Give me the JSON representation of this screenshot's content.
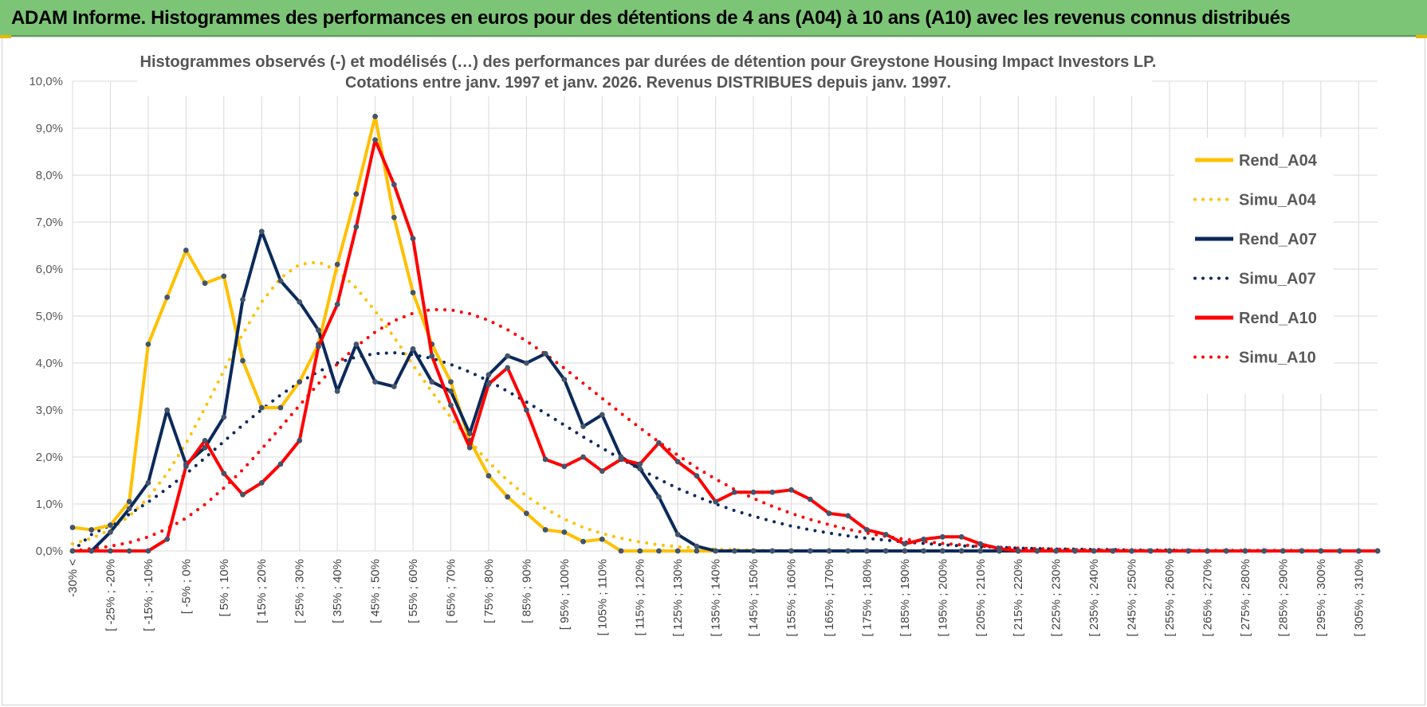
{
  "banner": {
    "title": "ADAM Informe. Histogrammes des performances en euros pour des détentions de 4 ans (A04) à 10 ans (A10) avec les revenus connus distribués"
  },
  "chart_data": {
    "type": "line",
    "title_line1": "Histogrammes observés (-) et modélisés (…) des performances par durées de détention pour Greystone Housing Impact Investors LP.",
    "title_line2": "Cotations entre janv. 1997 et janv. 2026. Revenus DISTRIBUES depuis janv. 1997.",
    "xlabel": "",
    "ylabel": "",
    "ylim": [
      0,
      10
    ],
    "yticks": [
      "0,0%",
      "1,0%",
      "2,0%",
      "3,0%",
      "4,0%",
      "5,0%",
      "6,0%",
      "7,0%",
      "8,0%",
      "9,0%",
      "10,0%"
    ],
    "grid": true,
    "legend_position": "right",
    "category_labels": [
      "-30% <",
      "[ -25% ; -20%",
      "[ -15% ; -10%",
      "[ -5% ; 0%",
      "[ 5% ; 10%",
      "[ 15% ; 20%",
      "[ 25% ; 30%",
      "[ 35% ; 40%",
      "[ 45% ; 50%",
      "[ 55% ; 60%",
      "[ 65% ; 70%",
      "[ 75% ; 80%",
      "[ 85% ; 90%",
      "[ 95% ; 100%",
      "[ 105% ; 110%",
      "[ 115% ; 120%",
      "[ 125% ; 130%",
      "[ 135% ; 140%",
      "[ 145% ; 150%",
      "[ 155% ; 160%",
      "[ 165% ; 170%",
      "[ 175% ; 180%",
      "[ 185% ; 190%",
      "[ 195% ; 200%",
      "[ 205% ; 210%",
      "[ 215% ; 220%",
      "[ 225% ; 230%",
      "[ 235% ; 240%",
      "[ 245% ; 250%",
      "[ 255% ; 260%",
      "[ 265% ; 270%",
      "[ 275% ; 280%",
      "[ 285% ; 290%",
      "[ 295% ; 300%",
      "[ 305% ; 310%"
    ],
    "series": [
      {
        "name": "Rend_A04",
        "color": "#ffc000",
        "style": "solid",
        "values": [
          0.5,
          0.45,
          0.55,
          1.05,
          4.4,
          5.4,
          6.4,
          5.7,
          5.85,
          4.05,
          3.05,
          3.05,
          3.6,
          4.4,
          6.1,
          7.6,
          9.25,
          7.1,
          5.5,
          4.4,
          3.6,
          2.35,
          1.6,
          1.15,
          0.8,
          0.45,
          0.4,
          0.2,
          0.25,
          0.0,
          0.0,
          0.0,
          0.0,
          0.0,
          0.0,
          0.0,
          0.0,
          0.0,
          0.0,
          0.0,
          0.0,
          0.0,
          0.0,
          0.0,
          0.0,
          0.0,
          0.0,
          0.0,
          0.0,
          0.0,
          0.0,
          0.0,
          0.0,
          0.0,
          0.0,
          0.0,
          0.0,
          0.0,
          0.0,
          0.0,
          0.0,
          0.0,
          0.0,
          0.0,
          0.0,
          0.0,
          0.0,
          0.0,
          0.0,
          0.0
        ]
      },
      {
        "name": "Simu_A04",
        "color": "#ffc000",
        "style": "dotted",
        "values": [
          0.15,
          0.27,
          0.45,
          0.74,
          1.13,
          1.65,
          2.29,
          3.04,
          3.84,
          4.62,
          5.3,
          5.81,
          6.1,
          6.15,
          5.97,
          5.6,
          5.11,
          4.55,
          3.96,
          3.39,
          2.84,
          2.34,
          1.89,
          1.5,
          1.17,
          0.9,
          0.68,
          0.5,
          0.37,
          0.27,
          0.19,
          0.13,
          0.09,
          0.06,
          0.04,
          0.03,
          0.02,
          0.01,
          0.01,
          0.0,
          0.0,
          0.0,
          0.0,
          0.0,
          0.0,
          0.0,
          0.0,
          0.0,
          0.0,
          0.0,
          0.0,
          0.0,
          0.0,
          0.0,
          0.0,
          0.0,
          0.0,
          0.0,
          0.0,
          0.0,
          0.0,
          0.0,
          0.0,
          0.0,
          0.0,
          0.0,
          0.0,
          0.0,
          0.0,
          0.0
        ]
      },
      {
        "name": "Rend_A07",
        "color": "#0b2a5b",
        "style": "solid",
        "values": [
          0.0,
          0.0,
          0.4,
          0.9,
          1.45,
          3.0,
          1.85,
          2.2,
          2.85,
          5.35,
          6.8,
          5.75,
          5.3,
          4.7,
          3.4,
          4.4,
          3.6,
          3.5,
          4.3,
          3.6,
          3.4,
          2.5,
          3.75,
          4.15,
          4.0,
          4.2,
          3.65,
          2.65,
          2.9,
          2.0,
          1.75,
          1.15,
          0.35,
          0.1,
          0.0,
          0.0,
          0.0,
          0.0,
          0.0,
          0.0,
          0.0,
          0.0,
          0.0,
          0.0,
          0.0,
          0.0,
          0.0,
          0.0,
          0.0,
          0.0,
          0.0,
          0.0,
          0.0,
          0.0,
          0.0,
          0.0,
          0.0,
          0.0,
          0.0,
          0.0,
          0.0,
          0.0,
          0.0,
          0.0,
          0.0,
          0.0,
          0.0,
          0.0,
          0.0,
          0.0
        ]
      },
      {
        "name": "Simu_A07",
        "color": "#0b2a5b",
        "style": "dotted",
        "values": [
          0.0,
          0.35,
          0.55,
          0.78,
          1.04,
          1.33,
          1.64,
          1.98,
          2.33,
          2.68,
          3.01,
          3.32,
          3.59,
          3.82,
          4.0,
          4.13,
          4.2,
          4.22,
          4.18,
          4.1,
          3.97,
          3.81,
          3.62,
          3.4,
          3.17,
          2.93,
          2.68,
          2.43,
          2.19,
          1.96,
          1.74,
          1.53,
          1.33,
          1.16,
          1.0,
          0.86,
          0.74,
          0.63,
          0.53,
          0.45,
          0.38,
          0.32,
          0.27,
          0.23,
          0.19,
          0.16,
          0.13,
          0.11,
          0.09,
          0.08,
          0.06,
          0.05,
          0.04,
          0.04,
          0.03,
          0.03,
          0.02,
          0.02,
          0.02,
          0.01,
          0.01,
          0.01,
          0.01,
          0.01,
          0.01,
          0.01,
          0.0,
          0.0,
          0.0,
          0.0
        ]
      },
      {
        "name": "Rend_A10",
        "color": "#ff0000",
        "style": "solid",
        "values": [
          0.0,
          0.0,
          0.0,
          0.0,
          0.0,
          0.25,
          1.8,
          2.35,
          1.65,
          1.2,
          1.45,
          1.85,
          2.35,
          4.35,
          5.25,
          6.9,
          8.75,
          7.8,
          6.65,
          4.15,
          3.1,
          2.2,
          3.55,
          3.9,
          3.0,
          1.95,
          1.8,
          2.0,
          1.7,
          1.95,
          1.85,
          2.3,
          1.9,
          1.6,
          1.05,
          1.25,
          1.25,
          1.25,
          1.3,
          1.1,
          0.8,
          0.75,
          0.45,
          0.35,
          0.15,
          0.25,
          0.3,
          0.3,
          0.15,
          0.05,
          0.0,
          0.0,
          0.0,
          0.0,
          0.0,
          0.0,
          0.0,
          0.0,
          0.0,
          0.0,
          0.0,
          0.0,
          0.0,
          0.0,
          0.0,
          0.0,
          0.0,
          0.0,
          0.0,
          0.0
        ]
      },
      {
        "name": "Simu_A10",
        "color": "#ff0000",
        "style": "dotted",
        "values": [
          0.0,
          0.05,
          0.1,
          0.18,
          0.3,
          0.47,
          0.7,
          0.99,
          1.34,
          1.73,
          2.17,
          2.63,
          3.1,
          3.56,
          3.98,
          4.35,
          4.66,
          4.9,
          5.06,
          5.14,
          5.13,
          5.05,
          4.91,
          4.71,
          4.47,
          4.19,
          3.89,
          3.57,
          3.25,
          2.93,
          2.62,
          2.32,
          2.04,
          1.77,
          1.53,
          1.31,
          1.12,
          0.95,
          0.8,
          0.67,
          0.56,
          0.46,
          0.38,
          0.31,
          0.25,
          0.2,
          0.16,
          0.13,
          0.1,
          0.08,
          0.06,
          0.05,
          0.04,
          0.03,
          0.02,
          0.02,
          0.01,
          0.01,
          0.01,
          0.01,
          0.0,
          0.0,
          0.0,
          0.0,
          0.0,
          0.0,
          0.0,
          0.0,
          0.0,
          0.0
        ]
      }
    ]
  }
}
